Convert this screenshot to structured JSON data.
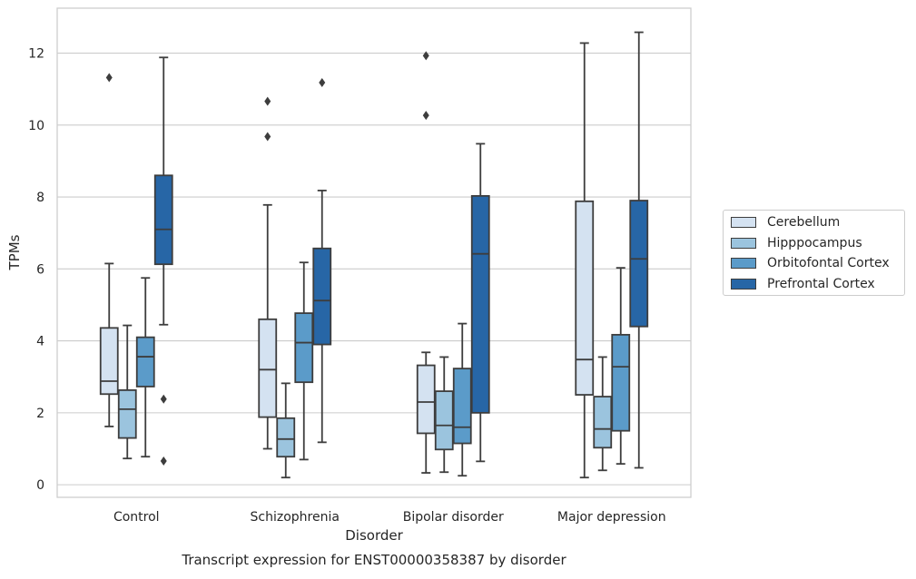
{
  "chart_data": {
    "type": "box",
    "title": "Transcript expression for ENST00000358387 by disorder",
    "xlabel": "Disorder",
    "ylabel": "TPMs",
    "ylim": [
      -0.35,
      13.25
    ],
    "yticks": [
      0,
      2,
      4,
      6,
      8,
      10,
      12
    ],
    "grid": "horizontal",
    "legend_position": "right",
    "categories": [
      "Control",
      "Schizophrenia",
      "Bipolar disorder",
      "Major depression"
    ],
    "series": [
      {
        "name": "Cerebellum",
        "color": "#d4e2f1",
        "boxes": [
          {
            "whislo": 1.62,
            "q1": 2.52,
            "med": 2.88,
            "q3": 4.36,
            "whishi": 6.15,
            "fliers": [
              11.32
            ]
          },
          {
            "whislo": 1.0,
            "q1": 1.88,
            "med": 3.2,
            "q3": 4.6,
            "whishi": 7.78,
            "fliers": [
              10.66,
              9.68
            ]
          },
          {
            "whislo": 0.33,
            "q1": 1.43,
            "med": 2.3,
            "q3": 3.32,
            "whishi": 3.68,
            "fliers": [
              11.93,
              10.27
            ]
          },
          {
            "whislo": 0.2,
            "q1": 2.5,
            "med": 3.48,
            "q3": 7.88,
            "whishi": 12.28,
            "fliers": []
          }
        ]
      },
      {
        "name": "Hipppocampus",
        "color": "#9bc4de",
        "boxes": [
          {
            "whislo": 0.73,
            "q1": 1.3,
            "med": 2.1,
            "q3": 2.63,
            "whishi": 4.43,
            "fliers": []
          },
          {
            "whislo": 0.2,
            "q1": 0.78,
            "med": 1.27,
            "q3": 1.85,
            "whishi": 2.82,
            "fliers": []
          },
          {
            "whislo": 0.35,
            "q1": 0.98,
            "med": 1.65,
            "q3": 2.6,
            "whishi": 3.55,
            "fliers": []
          },
          {
            "whislo": 0.4,
            "q1": 1.03,
            "med": 1.55,
            "q3": 2.45,
            "whishi": 3.55,
            "fliers": []
          }
        ]
      },
      {
        "name": "Orbitofontal Cortex",
        "color": "#5b9bc9",
        "boxes": [
          {
            "whislo": 0.78,
            "q1": 2.73,
            "med": 3.56,
            "q3": 4.1,
            "whishi": 5.75,
            "fliers": []
          },
          {
            "whislo": 0.7,
            "q1": 2.85,
            "med": 3.95,
            "q3": 4.77,
            "whishi": 6.18,
            "fliers": []
          },
          {
            "whislo": 0.25,
            "q1": 1.15,
            "med": 1.6,
            "q3": 3.23,
            "whishi": 4.48,
            "fliers": []
          },
          {
            "whislo": 0.58,
            "q1": 1.5,
            "med": 3.28,
            "q3": 4.17,
            "whishi": 6.03,
            "fliers": []
          }
        ]
      },
      {
        "name": "Prefrontal Cortex",
        "color": "#2766a6",
        "boxes": [
          {
            "whislo": 4.45,
            "q1": 6.13,
            "med": 7.1,
            "q3": 8.6,
            "whishi": 11.88,
            "fliers": [
              2.38,
              0.66
            ]
          },
          {
            "whislo": 1.18,
            "q1": 3.9,
            "med": 5.12,
            "q3": 6.57,
            "whishi": 8.18,
            "fliers": [
              11.18
            ]
          },
          {
            "whislo": 0.65,
            "q1": 2.0,
            "med": 6.42,
            "q3": 8.03,
            "whishi": 9.48,
            "fliers": []
          },
          {
            "whislo": 0.47,
            "q1": 4.4,
            "med": 6.28,
            "q3": 7.9,
            "whishi": 12.58,
            "fliers": []
          }
        ]
      }
    ]
  }
}
